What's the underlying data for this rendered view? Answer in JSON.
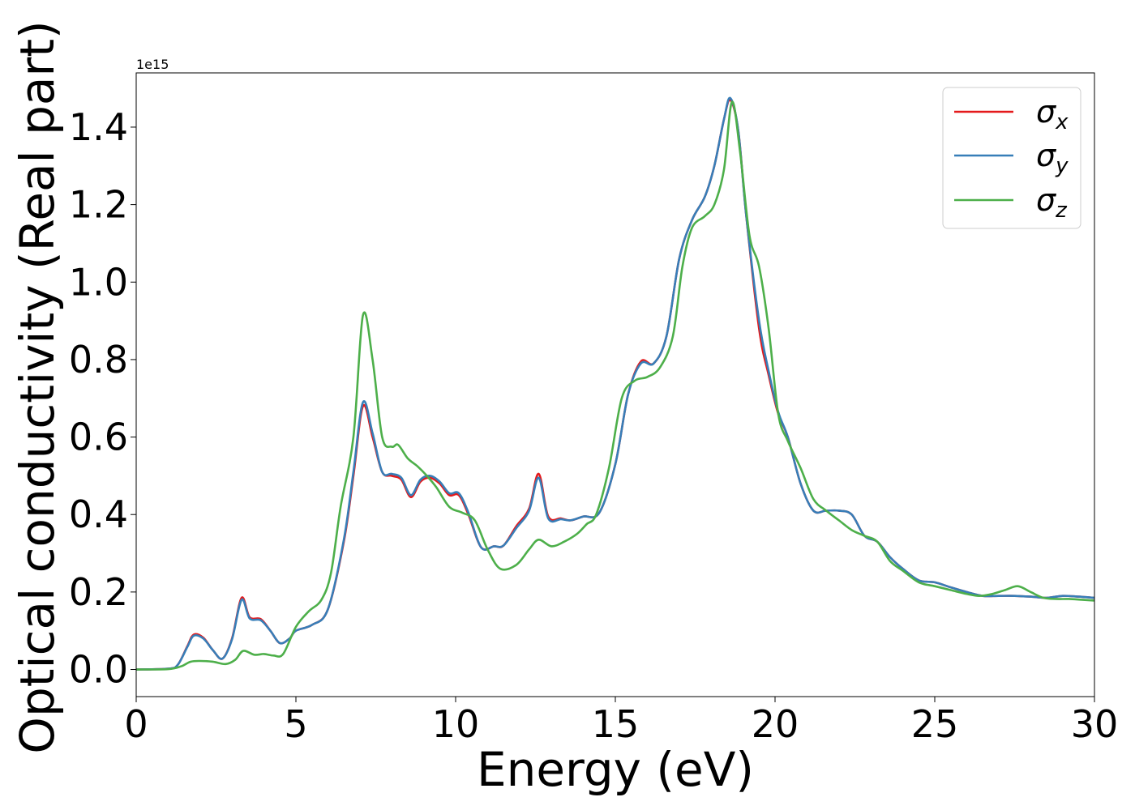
{
  "chart_data": {
    "type": "line",
    "title": "",
    "xlabel": "Energy (eV)",
    "ylabel": "Optical conductivity (Real part)",
    "y_offset_text": "1e15",
    "xlim": [
      0,
      30
    ],
    "ylim": [
      -0.07,
      1.54
    ],
    "x_ticks": [
      0,
      5,
      10,
      15,
      20,
      25,
      30
    ],
    "x_tick_labels": [
      "0",
      "5",
      "10",
      "15",
      "20",
      "25",
      "30"
    ],
    "y_ticks": [
      0.0,
      0.2,
      0.4,
      0.6,
      0.8,
      1.0,
      1.2,
      1.4
    ],
    "y_tick_labels": [
      "0.0",
      "0.2",
      "0.4",
      "0.6",
      "0.8",
      "1.0",
      "1.2",
      "1.4"
    ],
    "grid": false,
    "legend_position": "top-right",
    "series": [
      {
        "name": "σx",
        "legend_base": "σ",
        "legend_sub": "x",
        "color": "#e41a1c",
        "points": [
          [
            0,
            0
          ],
          [
            1,
            0.002
          ],
          [
            1.3,
            0.012
          ],
          [
            1.6,
            0.06
          ],
          [
            1.8,
            0.09
          ],
          [
            2.1,
            0.082
          ],
          [
            2.4,
            0.05
          ],
          [
            2.7,
            0.028
          ],
          [
            3.0,
            0.08
          ],
          [
            3.3,
            0.185
          ],
          [
            3.55,
            0.135
          ],
          [
            3.9,
            0.13
          ],
          [
            4.2,
            0.1
          ],
          [
            4.5,
            0.068
          ],
          [
            4.8,
            0.08
          ],
          [
            5.0,
            0.1
          ],
          [
            5.5,
            0.115
          ],
          [
            6.0,
            0.155
          ],
          [
            6.5,
            0.33
          ],
          [
            6.8,
            0.5
          ],
          [
            7.1,
            0.68
          ],
          [
            7.4,
            0.6
          ],
          [
            7.7,
            0.51
          ],
          [
            8.0,
            0.5
          ],
          [
            8.3,
            0.49
          ],
          [
            8.6,
            0.445
          ],
          [
            8.9,
            0.485
          ],
          [
            9.2,
            0.495
          ],
          [
            9.5,
            0.48
          ],
          [
            9.8,
            0.45
          ],
          [
            10.1,
            0.45
          ],
          [
            10.4,
            0.4
          ],
          [
            10.8,
            0.315
          ],
          [
            11.2,
            0.318
          ],
          [
            11.5,
            0.32
          ],
          [
            11.9,
            0.37
          ],
          [
            12.3,
            0.415
          ],
          [
            12.6,
            0.505
          ],
          [
            12.9,
            0.395
          ],
          [
            13.3,
            0.39
          ],
          [
            13.6,
            0.385
          ],
          [
            14.0,
            0.395
          ],
          [
            14.5,
            0.405
          ],
          [
            15.0,
            0.53
          ],
          [
            15.4,
            0.71
          ],
          [
            15.8,
            0.795
          ],
          [
            16.2,
            0.79
          ],
          [
            16.6,
            0.86
          ],
          [
            17.0,
            1.06
          ],
          [
            17.4,
            1.16
          ],
          [
            17.8,
            1.22
          ],
          [
            18.1,
            1.3
          ],
          [
            18.4,
            1.42
          ],
          [
            18.6,
            1.47
          ],
          [
            18.85,
            1.39
          ],
          [
            19.1,
            1.17
          ],
          [
            19.5,
            0.88
          ],
          [
            19.8,
            0.76
          ],
          [
            20.1,
            0.66
          ],
          [
            20.4,
            0.6
          ],
          [
            20.8,
            0.48
          ],
          [
            21.2,
            0.41
          ],
          [
            21.6,
            0.41
          ],
          [
            22.0,
            0.41
          ],
          [
            22.4,
            0.4
          ],
          [
            22.8,
            0.345
          ],
          [
            23.2,
            0.33
          ],
          [
            23.6,
            0.29
          ],
          [
            24.0,
            0.26
          ],
          [
            24.5,
            0.23
          ],
          [
            25.0,
            0.225
          ],
          [
            25.5,
            0.212
          ],
          [
            26.0,
            0.2
          ],
          [
            26.5,
            0.19
          ],
          [
            27.0,
            0.19
          ],
          [
            27.5,
            0.19
          ],
          [
            28.0,
            0.188
          ],
          [
            28.5,
            0.185
          ],
          [
            29.0,
            0.19
          ],
          [
            29.5,
            0.188
          ],
          [
            30.0,
            0.185
          ]
        ]
      },
      {
        "name": "σy",
        "legend_base": "σ",
        "legend_sub": "y",
        "color": "#377eb8",
        "points": [
          [
            0,
            0
          ],
          [
            1,
            0.002
          ],
          [
            1.3,
            0.012
          ],
          [
            1.6,
            0.058
          ],
          [
            1.8,
            0.087
          ],
          [
            2.1,
            0.08
          ],
          [
            2.4,
            0.05
          ],
          [
            2.7,
            0.028
          ],
          [
            3.0,
            0.078
          ],
          [
            3.3,
            0.18
          ],
          [
            3.55,
            0.132
          ],
          [
            3.9,
            0.127
          ],
          [
            4.2,
            0.1
          ],
          [
            4.5,
            0.068
          ],
          [
            4.8,
            0.08
          ],
          [
            5.0,
            0.1
          ],
          [
            5.5,
            0.115
          ],
          [
            6.0,
            0.155
          ],
          [
            6.5,
            0.335
          ],
          [
            6.8,
            0.51
          ],
          [
            7.1,
            0.69
          ],
          [
            7.4,
            0.61
          ],
          [
            7.7,
            0.51
          ],
          [
            8.0,
            0.505
          ],
          [
            8.3,
            0.495
          ],
          [
            8.6,
            0.45
          ],
          [
            8.9,
            0.49
          ],
          [
            9.2,
            0.5
          ],
          [
            9.5,
            0.485
          ],
          [
            9.8,
            0.455
          ],
          [
            10.1,
            0.455
          ],
          [
            10.4,
            0.405
          ],
          [
            10.8,
            0.315
          ],
          [
            11.2,
            0.318
          ],
          [
            11.5,
            0.32
          ],
          [
            11.9,
            0.365
          ],
          [
            12.3,
            0.41
          ],
          [
            12.6,
            0.495
          ],
          [
            12.9,
            0.39
          ],
          [
            13.3,
            0.388
          ],
          [
            13.6,
            0.385
          ],
          [
            14.0,
            0.395
          ],
          [
            14.5,
            0.405
          ],
          [
            15.0,
            0.53
          ],
          [
            15.4,
            0.71
          ],
          [
            15.8,
            0.79
          ],
          [
            16.2,
            0.79
          ],
          [
            16.6,
            0.86
          ],
          [
            17.0,
            1.06
          ],
          [
            17.4,
            1.16
          ],
          [
            17.8,
            1.22
          ],
          [
            18.1,
            1.3
          ],
          [
            18.4,
            1.42
          ],
          [
            18.6,
            1.475
          ],
          [
            18.85,
            1.39
          ],
          [
            19.1,
            1.17
          ],
          [
            19.5,
            0.9
          ],
          [
            19.8,
            0.77
          ],
          [
            20.1,
            0.665
          ],
          [
            20.4,
            0.6
          ],
          [
            20.8,
            0.48
          ],
          [
            21.2,
            0.41
          ],
          [
            21.6,
            0.41
          ],
          [
            22.0,
            0.41
          ],
          [
            22.4,
            0.4
          ],
          [
            22.8,
            0.345
          ],
          [
            23.2,
            0.33
          ],
          [
            23.6,
            0.29
          ],
          [
            24.0,
            0.26
          ],
          [
            24.5,
            0.23
          ],
          [
            25.0,
            0.225
          ],
          [
            25.5,
            0.212
          ],
          [
            26.0,
            0.2
          ],
          [
            26.5,
            0.19
          ],
          [
            27.0,
            0.19
          ],
          [
            27.5,
            0.19
          ],
          [
            28.0,
            0.188
          ],
          [
            28.5,
            0.185
          ],
          [
            29.0,
            0.19
          ],
          [
            29.5,
            0.188
          ],
          [
            30.0,
            0.185
          ]
        ]
      },
      {
        "name": "σz",
        "legend_base": "σ",
        "legend_sub": "z",
        "color": "#4daf4a",
        "points": [
          [
            0,
            0
          ],
          [
            1,
            0.001
          ],
          [
            1.4,
            0.008
          ],
          [
            1.7,
            0.02
          ],
          [
            2.0,
            0.022
          ],
          [
            2.4,
            0.02
          ],
          [
            2.8,
            0.014
          ],
          [
            3.1,
            0.025
          ],
          [
            3.35,
            0.048
          ],
          [
            3.7,
            0.038
          ],
          [
            4.0,
            0.04
          ],
          [
            4.3,
            0.036
          ],
          [
            4.6,
            0.04
          ],
          [
            5.0,
            0.11
          ],
          [
            5.4,
            0.15
          ],
          [
            5.8,
            0.18
          ],
          [
            6.1,
            0.25
          ],
          [
            6.4,
            0.42
          ],
          [
            6.8,
            0.6
          ],
          [
            7.1,
            0.915
          ],
          [
            7.4,
            0.8
          ],
          [
            7.7,
            0.6
          ],
          [
            8.0,
            0.575
          ],
          [
            8.2,
            0.58
          ],
          [
            8.5,
            0.545
          ],
          [
            8.8,
            0.525
          ],
          [
            9.1,
            0.5
          ],
          [
            9.4,
            0.47
          ],
          [
            9.8,
            0.42
          ],
          [
            10.2,
            0.405
          ],
          [
            10.6,
            0.385
          ],
          [
            11.0,
            0.31
          ],
          [
            11.4,
            0.26
          ],
          [
            11.9,
            0.27
          ],
          [
            12.3,
            0.31
          ],
          [
            12.6,
            0.335
          ],
          [
            13.0,
            0.318
          ],
          [
            13.4,
            0.33
          ],
          [
            13.8,
            0.35
          ],
          [
            14.1,
            0.375
          ],
          [
            14.4,
            0.4
          ],
          [
            14.8,
            0.52
          ],
          [
            15.2,
            0.7
          ],
          [
            15.6,
            0.745
          ],
          [
            16.0,
            0.755
          ],
          [
            16.4,
            0.78
          ],
          [
            16.8,
            0.86
          ],
          [
            17.1,
            1.04
          ],
          [
            17.4,
            1.14
          ],
          [
            17.8,
            1.17
          ],
          [
            18.1,
            1.2
          ],
          [
            18.4,
            1.29
          ],
          [
            18.65,
            1.465
          ],
          [
            18.9,
            1.34
          ],
          [
            19.2,
            1.12
          ],
          [
            19.5,
            1.04
          ],
          [
            19.8,
            0.88
          ],
          [
            20.1,
            0.66
          ],
          [
            20.4,
            0.59
          ],
          [
            20.8,
            0.52
          ],
          [
            21.2,
            0.44
          ],
          [
            21.6,
            0.41
          ],
          [
            22.0,
            0.385
          ],
          [
            22.4,
            0.36
          ],
          [
            22.8,
            0.345
          ],
          [
            23.2,
            0.33
          ],
          [
            23.6,
            0.28
          ],
          [
            24.0,
            0.255
          ],
          [
            24.5,
            0.225
          ],
          [
            25.0,
            0.215
          ],
          [
            25.5,
            0.205
          ],
          [
            26.0,
            0.195
          ],
          [
            26.4,
            0.19
          ],
          [
            26.8,
            0.195
          ],
          [
            27.2,
            0.205
          ],
          [
            27.6,
            0.215
          ],
          [
            28.0,
            0.2
          ],
          [
            28.4,
            0.185
          ],
          [
            28.8,
            0.182
          ],
          [
            29.2,
            0.182
          ],
          [
            29.6,
            0.18
          ],
          [
            30.0,
            0.178
          ]
        ]
      }
    ]
  }
}
